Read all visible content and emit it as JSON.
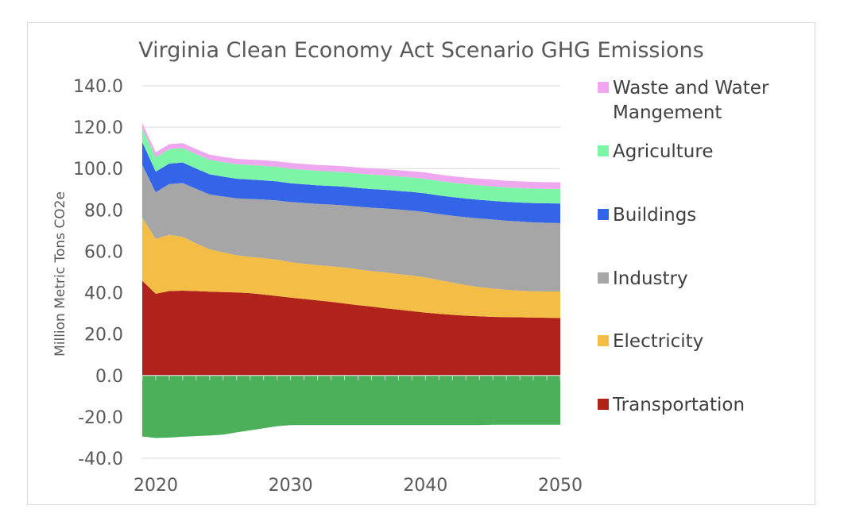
{
  "chart_data": {
    "type": "area",
    "stacked": true,
    "title": "Virginia Clean Economy Act Scenario GHG Emissions",
    "xlabel": "",
    "ylabel": "Million Metric Tons CO2e",
    "ylim": [
      -40,
      140
    ],
    "xlim": [
      2019,
      2050
    ],
    "yticks": [
      "140.0",
      "120.0",
      "100.0",
      "80.0",
      "60.0",
      "40.0",
      "20.0",
      "0.0",
      "-20.0",
      "-40.0"
    ],
    "xticks": [
      "2020",
      "2030",
      "2040",
      "2050"
    ],
    "grid": true,
    "legend_position": "right",
    "x": [
      2019,
      2020,
      2021,
      2022,
      2023,
      2024,
      2025,
      2026,
      2027,
      2028,
      2029,
      2030,
      2031,
      2032,
      2033,
      2034,
      2035,
      2036,
      2037,
      2038,
      2039,
      2040,
      2041,
      2042,
      2043,
      2044,
      2045,
      2046,
      2047,
      2048,
      2049,
      2050
    ],
    "negative_series": {
      "color": "#4CAF5A",
      "values": [
        -29.5,
        -30.2,
        -30.0,
        -29.6,
        -29.3,
        -29.0,
        -28.6,
        -27.5,
        -26.5,
        -25.5,
        -24.5,
        -24.0,
        -24.0,
        -24.0,
        -24.0,
        -24.0,
        -24.0,
        -24.0,
        -24.0,
        -24.0,
        -24.0,
        -24.0,
        -24.0,
        -24.0,
        -24.0,
        -24.0,
        -23.8,
        -23.8,
        -23.8,
        -23.8,
        -23.8,
        -23.8
      ]
    },
    "series": [
      {
        "name": "Transportation",
        "color": "#B0231A",
        "values": [
          45.8,
          39.5,
          40.8,
          41.0,
          40.8,
          40.5,
          40.3,
          40.1,
          39.8,
          39.1,
          38.4,
          37.6,
          37.0,
          36.3,
          35.6,
          34.8,
          34.0,
          33.3,
          32.5,
          31.8,
          31.1,
          30.4,
          29.8,
          29.3,
          28.9,
          28.6,
          28.3,
          28.2,
          28.1,
          28.0,
          27.9,
          27.8
        ]
      },
      {
        "name": "Electricity",
        "color": "#F4BD45",
        "values": [
          30.5,
          26.5,
          27.2,
          26.0,
          23.0,
          20.5,
          19.2,
          18.0,
          17.5,
          17.6,
          17.6,
          17.2,
          17.0,
          17.0,
          17.2,
          17.4,
          17.3,
          17.2,
          17.3,
          17.2,
          17.2,
          17.0,
          16.3,
          15.6,
          14.8,
          14.1,
          13.7,
          13.2,
          12.9,
          12.7,
          12.7,
          12.8
        ]
      },
      {
        "name": "Industry",
        "color": "#A6A6A6",
        "values": [
          25.5,
          22.5,
          24.5,
          26.0,
          26.4,
          26.5,
          27.0,
          27.5,
          28.0,
          28.3,
          28.6,
          29.0,
          29.4,
          29.6,
          29.8,
          30.0,
          30.3,
          30.6,
          30.9,
          31.2,
          31.4,
          31.6,
          31.9,
          32.3,
          32.8,
          33.2,
          33.4,
          33.4,
          33.4,
          33.3,
          33.2,
          33.0
        ]
      },
      {
        "name": "Buildings",
        "color": "#3465E8",
        "values": [
          11.0,
          10.0,
          9.9,
          9.9,
          9.8,
          9.7,
          9.6,
          9.5,
          9.4,
          9.3,
          9.2,
          9.1,
          9.0,
          9.0,
          9.0,
          9.0,
          9.0,
          9.0,
          9.0,
          9.0,
          9.0,
          9.0,
          9.0,
          9.0,
          9.0,
          9.0,
          9.0,
          9.1,
          9.2,
          9.3,
          9.4,
          9.5
        ]
      },
      {
        "name": "Agriculture",
        "color": "#7DF5A6",
        "values": [
          6.8,
          6.9,
          7.0,
          7.0,
          7.0,
          7.0,
          7.0,
          7.0,
          7.0,
          7.0,
          7.0,
          7.0,
          7.0,
          7.0,
          7.0,
          7.0,
          7.0,
          7.0,
          7.0,
          7.0,
          7.0,
          7.0,
          7.0,
          7.0,
          7.0,
          7.0,
          7.0,
          7.0,
          7.0,
          7.0,
          7.0,
          7.0
        ]
      },
      {
        "name": "Waste and Water Mangement",
        "legend_lines": [
          "Waste and Water",
          "Mangement"
        ],
        "color": "#EFA8F0",
        "values": [
          2.4,
          2.4,
          2.4,
          2.4,
          2.4,
          2.5,
          2.5,
          2.6,
          2.6,
          2.7,
          2.7,
          2.8,
          2.8,
          2.8,
          2.9,
          2.9,
          2.9,
          3.0,
          3.0,
          3.0,
          3.0,
          3.1,
          3.1,
          3.1,
          3.1,
          3.2,
          3.2,
          3.2,
          3.2,
          3.2,
          3.2,
          3.2
        ]
      }
    ]
  }
}
